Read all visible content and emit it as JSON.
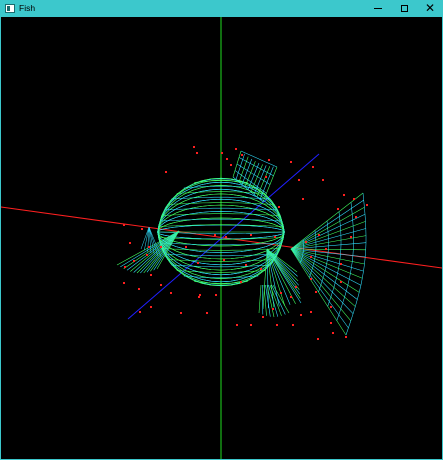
{
  "window": {
    "title": "Fish",
    "icon": "app-window-icon",
    "controls": {
      "minimize_icon": "minimize-icon",
      "maximize_icon": "maximize-icon",
      "close_label": "✕"
    }
  },
  "scene": {
    "background": "#000000",
    "axis_colors": {
      "x": "#ff2020",
      "y": "#20dd20",
      "z": "#2020ff"
    },
    "wireframe_colors": [
      "#30e0ff",
      "#40ff60"
    ],
    "point_color": "#ff2020"
  }
}
